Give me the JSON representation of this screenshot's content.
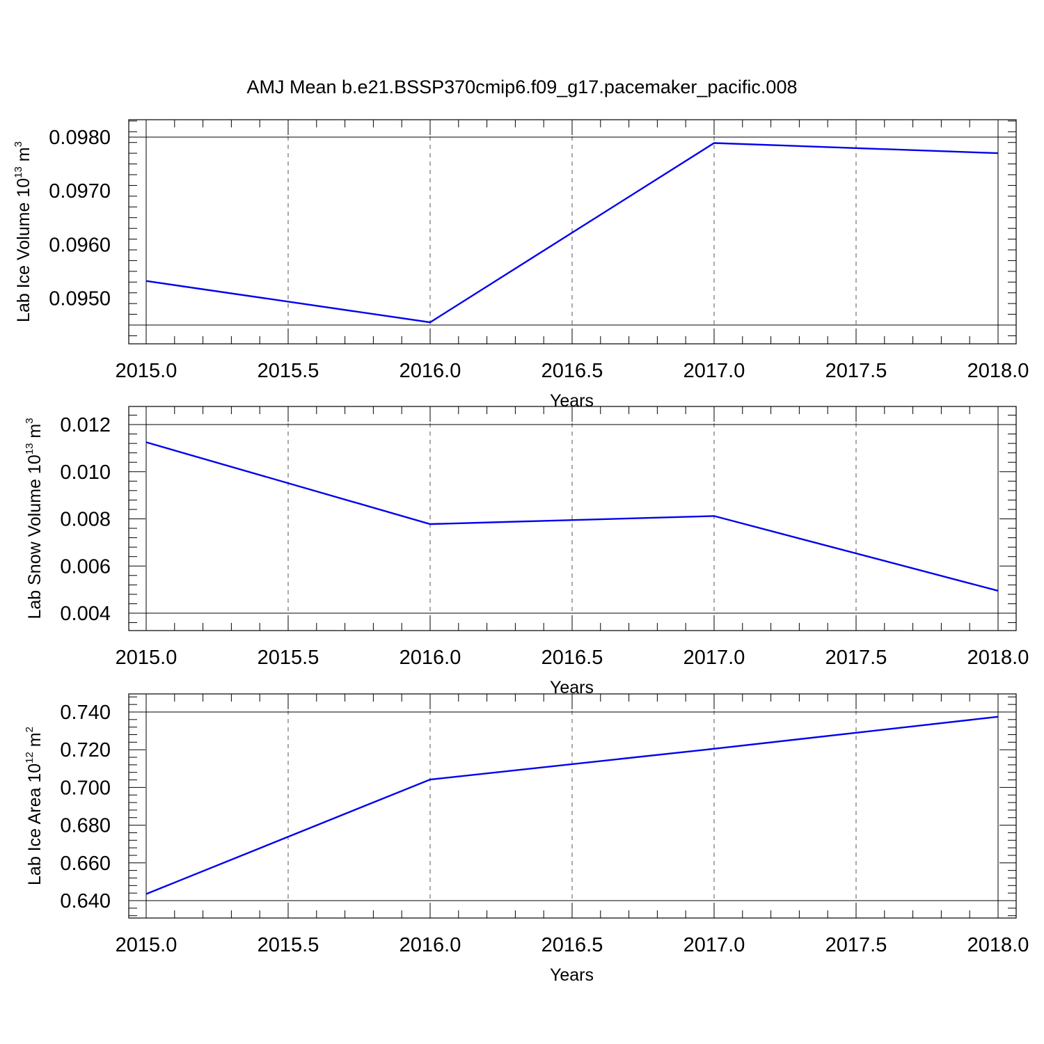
{
  "figure_title": "AMJ Mean b.e21.BSSP370cmip6.f09_g17.pacemaker_pacific.008",
  "colors": {
    "series": "#0000ee",
    "axis": "#000000",
    "grid": "#555555"
  },
  "chart_data": [
    {
      "type": "line",
      "xlabel": "Years",
      "ylabel": {
        "prefix": "Lab Ice Volume 10",
        "exp": "13",
        "unit": " m",
        "unit_exp": "3"
      },
      "xlim": [
        2015.0,
        2018.0
      ],
      "ylim": [
        0.0945,
        0.098
      ],
      "x_ticks": [
        "2015.0",
        "2015.5",
        "2016.0",
        "2016.5",
        "2017.0",
        "2017.5",
        "2018.0"
      ],
      "y_ticks": [
        "0.0950",
        "0.0960",
        "0.0970",
        "0.0980"
      ],
      "grid": "vertical-dashed",
      "series": [
        {
          "x": [
            2015,
            2016,
            2017,
            2018
          ],
          "values": [
            0.09532,
            0.09455,
            0.09789,
            0.0977
          ]
        }
      ]
    },
    {
      "type": "line",
      "xlabel": "Years",
      "ylabel": {
        "prefix": "Lab Snow Volume 10",
        "exp": "13",
        "unit": " m",
        "unit_exp": "3"
      },
      "xlim": [
        2015.0,
        2018.0
      ],
      "ylim": [
        0.004,
        0.012
      ],
      "x_ticks": [
        "2015.0",
        "2015.5",
        "2016.0",
        "2016.5",
        "2017.0",
        "2017.5",
        "2018.0"
      ],
      "y_ticks": [
        "0.004",
        "0.006",
        "0.008",
        "0.010",
        "0.012"
      ],
      "grid": "vertical-dashed",
      "series": [
        {
          "x": [
            2015,
            2016,
            2017,
            2018
          ],
          "values": [
            0.01125,
            0.00778,
            0.00812,
            0.00495
          ]
        }
      ]
    },
    {
      "type": "line",
      "xlabel": "Years",
      "ylabel": {
        "prefix": "Lab Ice Area 10",
        "exp": "12",
        "unit": " m",
        "unit_exp": "2"
      },
      "xlim": [
        2015.0,
        2018.0
      ],
      "ylim": [
        0.64,
        0.74
      ],
      "x_ticks": [
        "2015.0",
        "2015.5",
        "2016.0",
        "2016.5",
        "2017.0",
        "2017.5",
        "2018.0"
      ],
      "y_ticks": [
        "0.640",
        "0.660",
        "0.680",
        "0.700",
        "0.720",
        "0.740"
      ],
      "grid": "vertical-dashed",
      "series": [
        {
          "x": [
            2015,
            2016,
            2017,
            2018
          ],
          "values": [
            0.6435,
            0.7042,
            0.7205,
            0.7375
          ]
        }
      ]
    }
  ]
}
